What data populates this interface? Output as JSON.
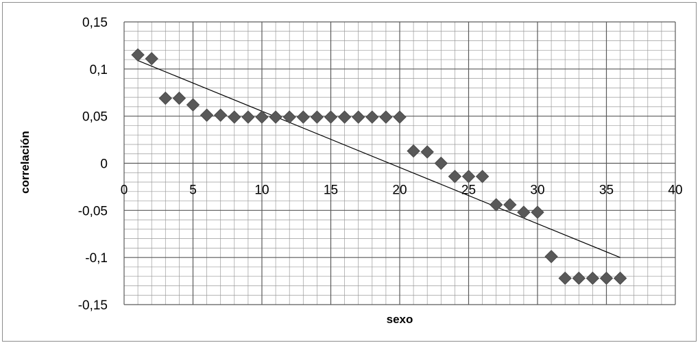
{
  "chart_data": {
    "type": "scatter",
    "title": "",
    "xlabel": "sexo",
    "ylabel": "correlación",
    "xlim": [
      0,
      40
    ],
    "ylim": [
      -0.15,
      0.15
    ],
    "x_ticks": [
      "0",
      "5",
      "10",
      "15",
      "20",
      "25",
      "30",
      "35",
      "40"
    ],
    "y_ticks": [
      "0,15",
      "0,1",
      "0,05",
      "0",
      "-0,05",
      "-0,1",
      "-0,15"
    ],
    "x_tick_values": [
      0,
      5,
      10,
      15,
      20,
      25,
      30,
      35,
      40
    ],
    "y_tick_values": [
      0.15,
      0.1,
      0.05,
      0,
      -0.05,
      -0.1,
      -0.15
    ],
    "grid": true,
    "legend": "none",
    "marker": "diamond",
    "marker_color": "#595959",
    "series": [
      {
        "x": [
          1,
          2,
          3,
          4,
          5,
          6,
          7,
          8,
          9,
          10,
          11,
          12,
          13,
          14,
          15,
          16,
          17,
          18,
          19,
          20,
          21,
          22,
          23,
          24,
          25,
          26,
          27,
          28,
          29,
          30,
          31,
          32,
          33,
          34,
          35,
          36
        ],
        "values": [
          0.115,
          0.111,
          0.069,
          0.069,
          0.062,
          0.051,
          0.051,
          0.049,
          0.049,
          0.049,
          0.049,
          0.049,
          0.049,
          0.049,
          0.049,
          0.049,
          0.049,
          0.049,
          0.049,
          0.049,
          0.013,
          0.012,
          0.0,
          -0.014,
          -0.014,
          -0.014,
          -0.044,
          -0.044,
          -0.052,
          -0.052,
          -0.099,
          -0.122,
          -0.122,
          -0.122,
          -0.122,
          -0.122
        ]
      }
    ],
    "trendline": {
      "type": "linear",
      "x": [
        1,
        36
      ],
      "values": [
        0.109,
        -0.1
      ]
    }
  }
}
